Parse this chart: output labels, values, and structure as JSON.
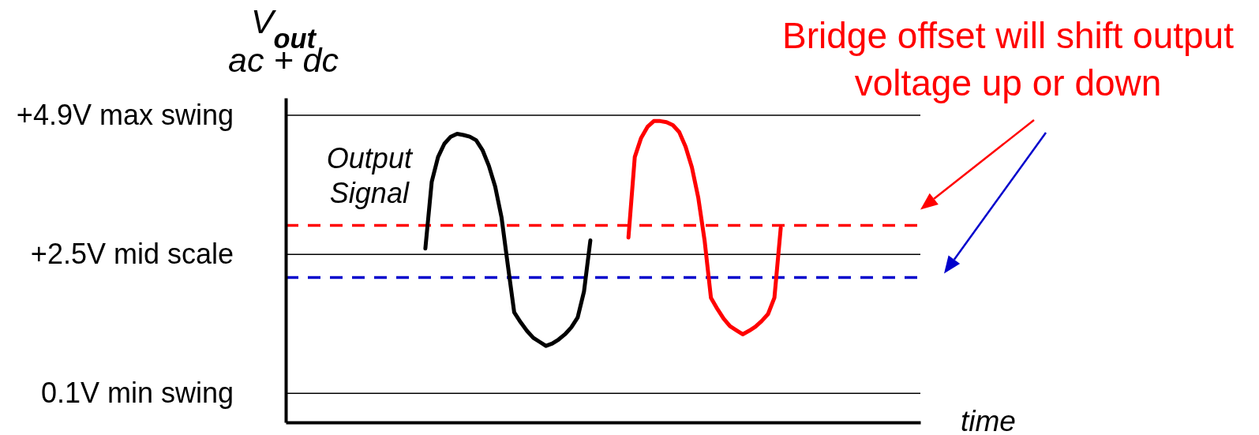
{
  "chart_data": {
    "type": "line",
    "ylabel": "V$_{out}$\nac + dc",
    "xlabel": "time",
    "annotations": [
      "Bridge offset will shift output voltage up or down"
    ],
    "categories": [
      null,
      null,
      null,
      null,
      null,
      null,
      null,
      null,
      null,
      null,
      null,
      null,
      null,
      null,
      null,
      null,
      null,
      null,
      null,
      null,
      null,
      null,
      null,
      null,
      null,
      null,
      null,
      null,
      null,
      null,
      null,
      null,
      null,
      null,
      null,
      null,
      null,
      null,
      null,
      null,
      null,
      null,
      null,
      null,
      null,
      null,
      null,
      null,
      null,
      null,
      null,
      null,
      null,
      null,
      null,
      null,
      null,
      null,
      null,
      null,
      null,
      null,
      null,
      null,
      null,
      null,
      null,
      null,
      null,
      null,
      null,
      null,
      null,
      null,
      null,
      null,
      null,
      null,
      null,
      null,
      null,
      null,
      null,
      null,
      null,
      null,
      null,
      null,
      null,
      null,
      null,
      null,
      null,
      null,
      null,
      null,
      null,
      null,
      null,
      null,
      null
    ],
    "series": [
      {
        "name": "Output Signal",
        "color": "#000000",
        "values": [
          null,
          null,
          null,
          null,
          null,
          null,
          null,
          null,
          null,
          null,
          null,
          null,
          null,
          null,
          null,
          null,
          null,
          null,
          null,
          null,
          null,
          null,
          2.6,
          3.75,
          4.18,
          4.41,
          4.53,
          4.58,
          4.56,
          4.53,
          4.47,
          4.3,
          4.03,
          3.67,
          3.14,
          2.31,
          1.5,
          1.33,
          1.18,
          1.06,
          0.99,
          0.92,
          0.96,
          1.03,
          1.12,
          1.24,
          1.41,
          1.86,
          2.74,
          null,
          null,
          null,
          null,
          null,
          null,
          null,
          null,
          null,
          null,
          null,
          null,
          null,
          null,
          null,
          null,
          null,
          null,
          null,
          null,
          null,
          null,
          null,
          null,
          null,
          null,
          null,
          null,
          null,
          null,
          null,
          null,
          null,
          null,
          null,
          null,
          null,
          null,
          null,
          null,
          null,
          null,
          null,
          null,
          null,
          null,
          null,
          null,
          null,
          null,
          null,
          null
        ]
      },
      {
        "color": "#ff0000",
        "values": [
          null,
          null,
          null,
          null,
          null,
          null,
          null,
          null,
          null,
          null,
          null,
          null,
          null,
          null,
          null,
          null,
          null,
          null,
          null,
          null,
          null,
          null,
          null,
          null,
          null,
          null,
          null,
          null,
          null,
          null,
          null,
          null,
          null,
          null,
          null,
          null,
          null,
          null,
          null,
          null,
          null,
          null,
          null,
          null,
          null,
          null,
          null,
          null,
          null,
          null,
          null,
          null,
          null,
          null,
          2.79,
          4.18,
          4.51,
          4.7,
          4.8,
          4.8,
          4.78,
          4.73,
          4.61,
          4.36,
          4.0,
          3.48,
          2.74,
          1.75,
          1.56,
          1.39,
          1.26,
          1.19,
          1.12,
          1.18,
          1.25,
          1.35,
          1.47,
          1.75,
          2.96,
          null,
          null,
          null,
          null,
          null,
          null,
          null,
          null,
          null,
          null,
          null,
          null,
          null,
          null,
          null,
          null,
          null,
          null,
          null,
          null,
          null,
          null
        ]
      }
    ],
    "ylim": [
      -0.4,
      5.2
    ],
    "yticks": [
      {
        "value": 0.1,
        "label": "0.1V min swing"
      },
      {
        "value": 2.5,
        "label": "+2.5V mid scale"
      },
      {
        "value": 4.9,
        "label": "+4.9V max swing"
      }
    ],
    "grid": "y",
    "tick_labels": "y",
    "ref_lines": [
      {
        "axis": "y",
        "value": 3.0,
        "color": "#ff0000",
        "line_style": "dashed"
      },
      {
        "axis": "y",
        "value": 2.1,
        "color": "#0000cc",
        "line_style": "dashed"
      }
    ]
  }
}
